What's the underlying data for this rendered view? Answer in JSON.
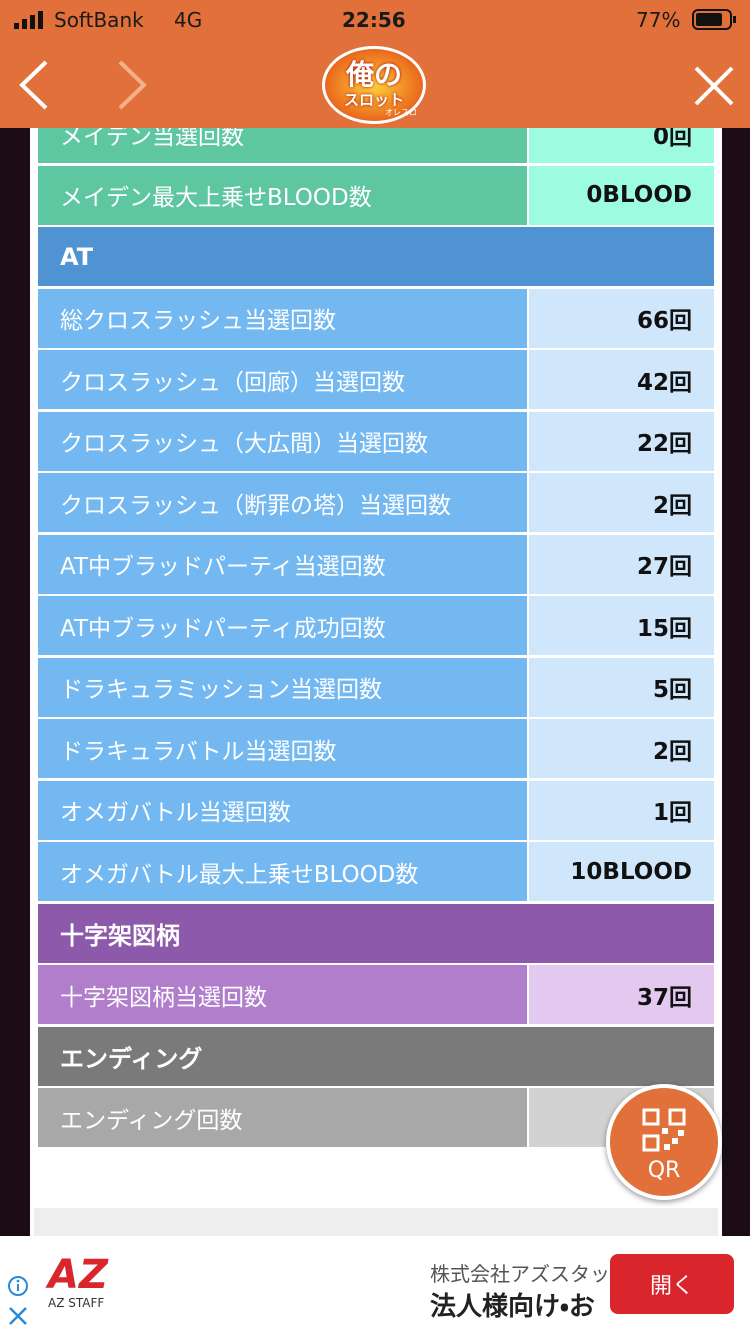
{
  "status": {
    "carrier": "SoftBank",
    "network": "4G",
    "time": "22:56",
    "battery": "77%"
  },
  "logo": {
    "main": "俺の",
    "sub": "スロット",
    "small": "オレスロ"
  },
  "sections": [
    {
      "rows": [
        [
          "メイデン当選回数",
          "0回"
        ],
        [
          "メイデン最大上乗せBLOOD数",
          "0BLOOD"
        ]
      ]
    },
    {
      "title": "AT",
      "rows": [
        [
          "総クロスラッシュ当選回数",
          "66回"
        ],
        [
          "クロスラッシュ（回廊）当選回数",
          "42回"
        ],
        [
          "クロスラッシュ（大広間）当選回数",
          "22回"
        ],
        [
          "クロスラッシュ（断罪の塔）当選回数",
          "2回"
        ],
        [
          "AT中ブラッドパーティ当選回数",
          "27回"
        ],
        [
          "AT中ブラッドパーティ成功回数",
          "15回"
        ],
        [
          "ドラキュラミッション当選回数",
          "5回"
        ],
        [
          "ドラキュラバトル当選回数",
          "2回"
        ],
        [
          "オメガバトル当選回数",
          "1回"
        ],
        [
          "オメガバトル最大上乗せBLOOD数",
          "10BLOOD"
        ]
      ]
    },
    {
      "title": "十字架図柄",
      "rows": [
        [
          "十字架図柄当選回数",
          "37回"
        ]
      ]
    },
    {
      "title": "エンディング",
      "rows": [
        [
          "エンディング回数"
        ]
      ]
    }
  ],
  "qr_button": "QR",
  "ad": {
    "brand": "AZ",
    "brand_sub": "AZ STAFF",
    "company": "株式会社アズスタッ",
    "headline": "法人様向け・お",
    "button": "開く"
  }
}
